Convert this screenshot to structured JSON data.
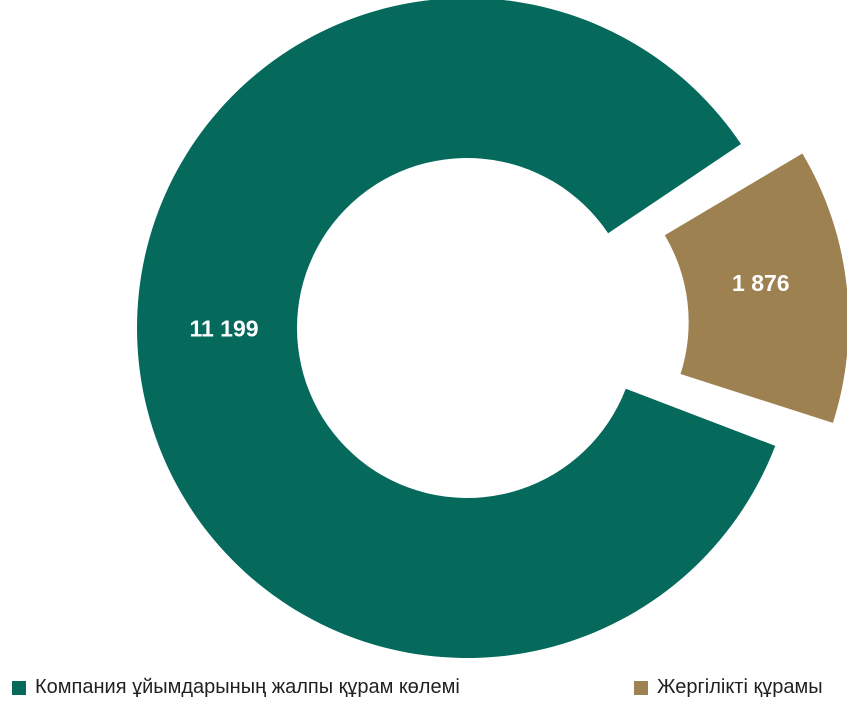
{
  "chart_data": {
    "type": "pie",
    "variant": "donut",
    "exploded_slice": "Жергілікті құрамы",
    "categories": [
      "Компания ұйымдарының жалпы құрам көлемі",
      "Жергілікті құрамы"
    ],
    "values": [
      11199,
      1876
    ],
    "data_labels": [
      "11 199",
      "1 876"
    ],
    "colors": [
      "#05695c",
      "#9e8150"
    ],
    "legend_position": "bottom"
  },
  "legend": {
    "items": [
      {
        "label": "Компания ұйымдарының жалпы құрам көлемі",
        "color": "#05695c"
      },
      {
        "label": "Жергілікті құрамы",
        "color": "#9e8150"
      }
    ]
  }
}
